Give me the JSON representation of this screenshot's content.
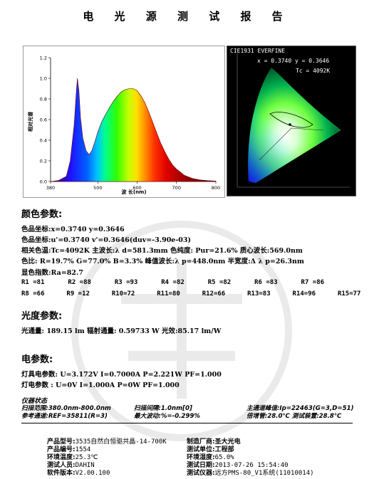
{
  "title": "电 光 源 测 试 报 告",
  "spectrum": {
    "ylabel": "相对光谱",
    "xlabel": "波 长(nm)",
    "yticks": [
      "0.0",
      "0.2",
      "0.4",
      "0.6",
      "0.8",
      "1.0",
      "1.2"
    ],
    "xticks": [
      "380",
      "500",
      "600",
      "700",
      "800"
    ]
  },
  "chart_data": {
    "type": "line",
    "xlabel": "波 长(nm)",
    "ylabel": "相对光谱",
    "xlim": [
      380,
      800
    ],
    "ylim": [
      0,
      1.2
    ],
    "x": [
      380,
      400,
      420,
      430,
      440,
      445,
      448,
      452,
      456,
      462,
      470,
      478,
      485,
      492,
      500,
      510,
      520,
      530,
      540,
      550,
      560,
      570,
      580,
      590,
      600,
      610,
      620,
      630,
      640,
      650,
      660,
      670,
      680,
      690,
      700,
      720,
      740,
      760,
      780,
      800
    ],
    "y": [
      0.0,
      0.01,
      0.05,
      0.2,
      0.55,
      0.85,
      1.0,
      0.88,
      0.62,
      0.42,
      0.3,
      0.26,
      0.3,
      0.38,
      0.48,
      0.58,
      0.65,
      0.72,
      0.78,
      0.83,
      0.87,
      0.89,
      0.9,
      0.9,
      0.88,
      0.83,
      0.76,
      0.67,
      0.57,
      0.47,
      0.37,
      0.29,
      0.22,
      0.16,
      0.12,
      0.06,
      0.03,
      0.015,
      0.008,
      0.004
    ]
  },
  "cie": {
    "header": "CIE1931 EVERFINE",
    "xy": "x = 0.3740  y = 0.3646",
    "tc": "Tc = 4092K"
  },
  "color": {
    "heading": "颜色参数:",
    "line1": "色品坐标:x=0.3740  y=0.3646",
    "line2": "色品坐标:u'=0.3740  v'=0.3646(duv=-3.90e-03)",
    "line3": "相关色温:Tc=4092K  主波长:λ d=581.3mm 色纯度: Pur=21.6% 质心波长:569.0nm",
    "line4": "色比: R=19.7% G=77.0% B=3.3%  峰值波长:λ p=448.0nm 半宽度:Δ λ p=26.3nm",
    "line5": "显色指数:Ra=82.7",
    "ri_row1": [
      "R1 =81",
      "R2 =88",
      "R3 =93",
      "R4 =82",
      "R5 =82",
      "R6 =83",
      "R7 =86"
    ],
    "ri_row2": [
      "R8 =66",
      "R9 =12",
      "R10=72",
      "R11=80",
      "R12=66",
      "R13=83",
      "R14=96",
      "R15=77"
    ]
  },
  "photometric": {
    "heading": "光度参数:",
    "line1": "光通量: 189.15 lm   辐射通量: 0.59733 W   光效:85.17 lm/W"
  },
  "electric": {
    "heading": "电参数:",
    "line1": "灯具电参数: U=3.172V  I=0.7000A  P=2.221W PF=1.000",
    "line2": "灯电参数  : U=0V  I=1.000A  P=0W PF=1.000"
  },
  "instrument": {
    "heading": "仪器状态",
    "scan_label": "扫描范围:",
    "scan_value": "380.0nm-800.0nm",
    "interval_label": "扫描间隔:",
    "interval_value": "1.0nm[0]",
    "main_label": "主通道峰值:",
    "main_value": "Ip=22463(G=3,D=51)",
    "ref_label": "参考通道:",
    "ref_value": "REF=35811(R=3)",
    "fluct_label": "最大波动:",
    "fluct_value": "%=-0.299%",
    "rise_label": "倍增管:",
    "rise_value": "28.0℃",
    "test_label": "测试装置:",
    "test_value": "28.8℃"
  },
  "footer": {
    "model_label": "产品型号:",
    "model_value": "3535自然白恒驱共晶-14-700K",
    "number_label": "产品编号:",
    "number_value": "1554",
    "temp_label": "环境温度:",
    "temp_value": "25.3℃",
    "tester_label": "测试人员:",
    "tester_value": "DAHIN",
    "software_label": "软件版本:",
    "software_value": "V2.00.100",
    "maker_label": "制造厂商:",
    "maker_value": "圣大光电",
    "unit_label": "测试单位:",
    "unit_value": "工程部",
    "humidity_label": "环境湿度:",
    "humidity_value": "65.0%",
    "date_label": "测试日期:",
    "date_value": "2013-07-26  15:54:40",
    "instrument_label": "测试仪器:",
    "instrument_value": "远方PMS-80_V1系统(11010014)"
  }
}
